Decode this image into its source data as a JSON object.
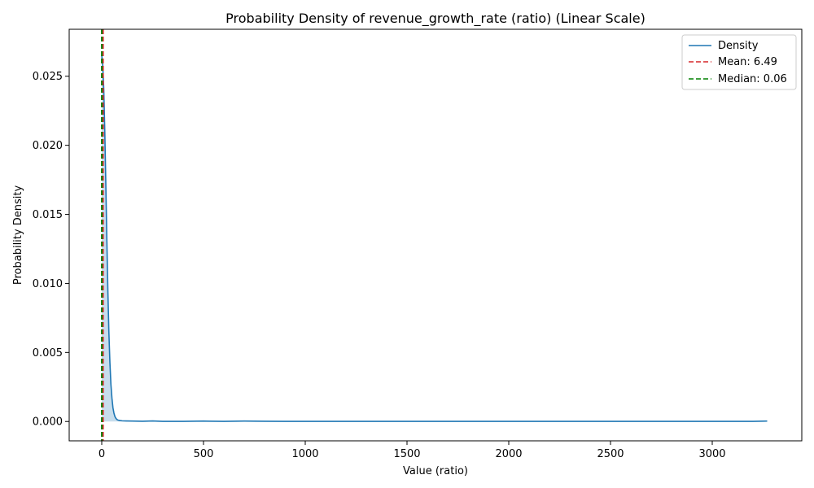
{
  "chart_data": {
    "type": "line",
    "title": "Probability Density of revenue_growth_rate (ratio) (Linear Scale)",
    "xlabel": "Value (ratio)",
    "ylabel": "Probability Density",
    "xlim": [
      -160,
      3440
    ],
    "ylim": [
      -0.0014,
      0.0284
    ],
    "xticks": [
      0,
      500,
      1000,
      1500,
      2000,
      2500,
      3000
    ],
    "yticks": [
      0.0,
      0.005,
      0.01,
      0.015,
      0.02,
      0.025
    ],
    "xtick_labels": [
      "0",
      "500",
      "1000",
      "1500",
      "2000",
      "2500",
      "3000"
    ],
    "ytick_labels": [
      "0.000",
      "0.005",
      "0.010",
      "0.015",
      "0.020",
      "0.025"
    ],
    "grid": false,
    "legend_position": "top-right",
    "series": [
      {
        "name": "Density",
        "color": "#1f77b4",
        "fill": true,
        "x": [
          0,
          5,
          10,
          15,
          20,
          25,
          30,
          35,
          40,
          45,
          50,
          55,
          60,
          65,
          70,
          75,
          80,
          90,
          100,
          120,
          150,
          200,
          250,
          300,
          400,
          500,
          600,
          700,
          800,
          900,
          1000,
          1500,
          2000,
          2500,
          3000,
          3200,
          3270
        ],
        "y": [
          0.0265,
          0.0258,
          0.024,
          0.021,
          0.0172,
          0.0132,
          0.0095,
          0.0065,
          0.0043,
          0.0027,
          0.0017,
          0.001,
          0.0006,
          0.00035,
          0.00022,
          0.00014,
          0.0001,
          7e-05,
          5e-05,
          4e-05,
          3e-05,
          2e-05,
          4e-05,
          1e-05,
          1e-05,
          3e-05,
          1e-05,
          3e-05,
          2e-05,
          1e-05,
          1e-05,
          1e-05,
          1e-05,
          1e-05,
          1e-05,
          1e-05,
          3e-05
        ]
      }
    ],
    "vlines": [
      {
        "name": "Mean: 6.49",
        "x": 6.49,
        "color": "#d62728",
        "style": "dashed"
      },
      {
        "name": "Median: 0.06",
        "x": 0.06,
        "color": "#008000",
        "style": "dashed"
      }
    ]
  }
}
